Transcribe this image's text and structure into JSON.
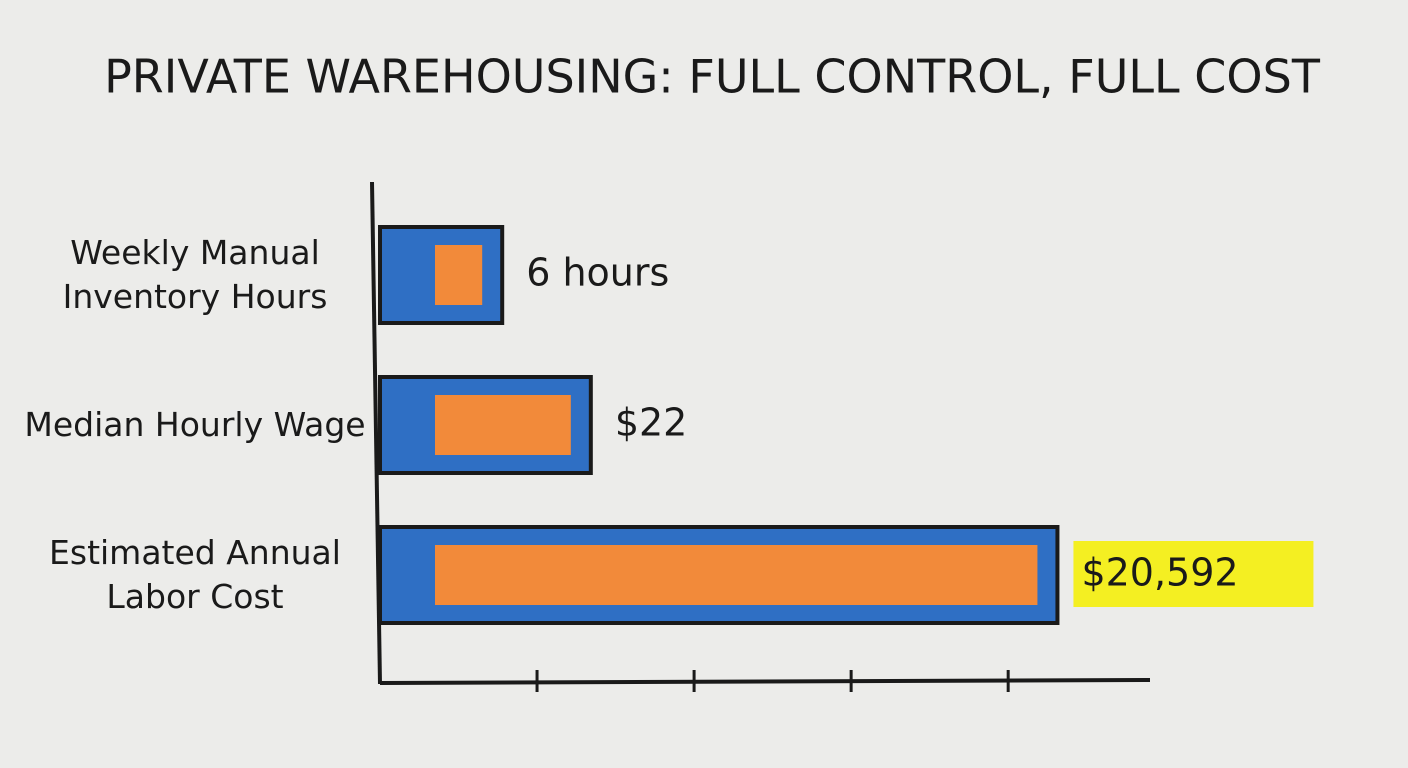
{
  "chart_data": {
    "type": "hbar",
    "title": "PRIVATE WAREHOUSING: FULL CONTROL, FULL COST",
    "categories": [
      "Weekly Manual Inventory Hours",
      "Median Hourly Wage",
      "Estimated Annual Labor Cost"
    ],
    "values": [
      6,
      22,
      20592
    ],
    "value_labels": [
      "6 hours",
      "$22",
      "$20,592"
    ],
    "highlight": [
      false,
      false,
      true
    ],
    "color": "#2f6fc4",
    "fill_color": "#f28a3a",
    "highlight_color": "#f4ef22",
    "log_scale": true,
    "xlim": [
      1,
      80000
    ],
    "xticks": [
      10,
      100,
      1000,
      10000
    ],
    "xtick_labels": false
  }
}
